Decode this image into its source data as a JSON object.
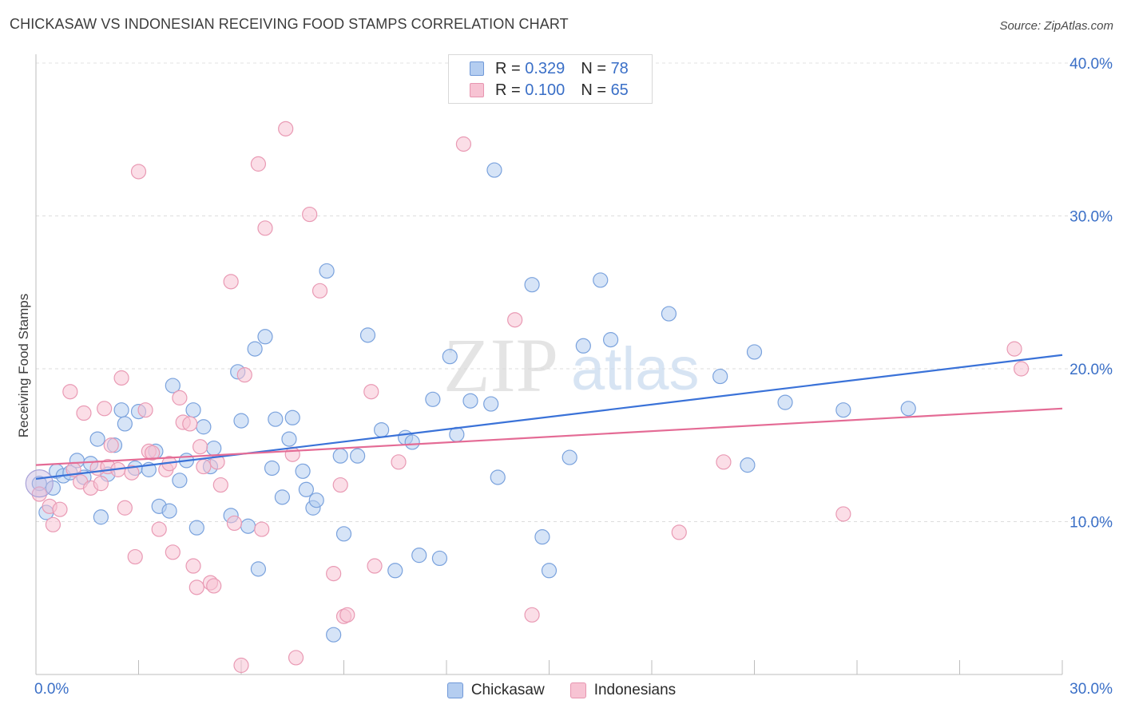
{
  "title": "CHICKASAW VS INDONESIAN RECEIVING FOOD STAMPS CORRELATION CHART",
  "source": "Source: ZipAtlas.com",
  "watermark": {
    "zip": "ZIP",
    "atlas": "atlas"
  },
  "legend": {
    "r_label": "R =",
    "n_label": "N =",
    "rows": [
      {
        "r": "0.329",
        "n": "78",
        "fill": "#b4cdf0",
        "stroke": "#6f98d8"
      },
      {
        "r": "0.100",
        "n": "65",
        "fill": "#f7c3d3",
        "stroke": "#e795b0"
      }
    ]
  },
  "chart_data": {
    "type": "scatter",
    "title": "CHICKASAW VS INDONESIAN RECEIVING FOOD STAMPS CORRELATION CHART",
    "xlabel": "",
    "ylabel": "Receiving Food Stamps",
    "xlim": [
      0,
      30
    ],
    "ylim": [
      0,
      40
    ],
    "x_tick_labels": [
      "0.0%",
      "30.0%"
    ],
    "y_tick_labels": [
      "10.0%",
      "20.0%",
      "30.0%",
      "40.0%"
    ],
    "y_ticks": [
      10,
      20,
      30,
      40
    ],
    "grid": true,
    "legend_position": "top-center",
    "series": [
      {
        "name": "Chickasaw",
        "color": "#3a72d8",
        "fill": "#b4cdf0",
        "stroke": "#7aa2dd",
        "trend": {
          "x": [
            0,
            30
          ],
          "y": [
            12.8,
            20.9
          ]
        },
        "points": [
          [
            0.1,
            12.5
          ],
          [
            0.3,
            10.6
          ],
          [
            0.5,
            12.2
          ],
          [
            0.6,
            13.3
          ],
          [
            0.8,
            13.0
          ],
          [
            1.0,
            13.2
          ],
          [
            1.2,
            14.0
          ],
          [
            1.4,
            12.9
          ],
          [
            1.6,
            13.8
          ],
          [
            1.8,
            15.4
          ],
          [
            1.9,
            10.3
          ],
          [
            2.1,
            13.1
          ],
          [
            2.3,
            15.0
          ],
          [
            2.5,
            17.3
          ],
          [
            2.6,
            16.4
          ],
          [
            2.9,
            13.5
          ],
          [
            3.0,
            17.2
          ],
          [
            3.3,
            13.4
          ],
          [
            3.5,
            14.6
          ],
          [
            3.6,
            11.0
          ],
          [
            3.9,
            10.7
          ],
          [
            4.0,
            18.9
          ],
          [
            4.2,
            12.7
          ],
          [
            4.4,
            14.0
          ],
          [
            4.6,
            17.3
          ],
          [
            4.7,
            9.6
          ],
          [
            4.9,
            16.2
          ],
          [
            5.1,
            13.6
          ],
          [
            5.2,
            14.8
          ],
          [
            5.7,
            10.4
          ],
          [
            5.9,
            19.8
          ],
          [
            6.0,
            16.6
          ],
          [
            6.2,
            9.7
          ],
          [
            6.4,
            21.3
          ],
          [
            6.5,
            6.9
          ],
          [
            6.7,
            22.1
          ],
          [
            6.9,
            13.5
          ],
          [
            7.0,
            16.7
          ],
          [
            7.2,
            11.6
          ],
          [
            7.4,
            15.4
          ],
          [
            7.5,
            16.8
          ],
          [
            7.8,
            13.3
          ],
          [
            7.9,
            12.1
          ],
          [
            8.1,
            10.9
          ],
          [
            8.2,
            11.4
          ],
          [
            8.5,
            26.4
          ],
          [
            8.7,
            2.6
          ],
          [
            8.9,
            14.3
          ],
          [
            9.0,
            9.2
          ],
          [
            9.4,
            14.3
          ],
          [
            9.7,
            22.2
          ],
          [
            10.1,
            16.0
          ],
          [
            10.5,
            6.8
          ],
          [
            10.8,
            15.5
          ],
          [
            11.0,
            15.2
          ],
          [
            11.2,
            7.8
          ],
          [
            11.6,
            18.0
          ],
          [
            11.8,
            7.6
          ],
          [
            12.1,
            20.8
          ],
          [
            12.3,
            15.7
          ],
          [
            12.7,
            17.9
          ],
          [
            13.3,
            17.7
          ],
          [
            13.4,
            33.0
          ],
          [
            13.5,
            12.9
          ],
          [
            14.5,
            25.5
          ],
          [
            14.8,
            9.0
          ],
          [
            15.0,
            6.8
          ],
          [
            15.6,
            14.2
          ],
          [
            16.0,
            21.5
          ],
          [
            16.5,
            25.8
          ],
          [
            16.8,
            21.9
          ],
          [
            18.5,
            23.6
          ],
          [
            20.0,
            19.5
          ],
          [
            20.8,
            13.7
          ],
          [
            21.0,
            21.1
          ],
          [
            21.9,
            17.8
          ],
          [
            23.6,
            17.3
          ],
          [
            25.5,
            17.4
          ]
        ]
      },
      {
        "name": "Indonesians",
        "color": "#e46b95",
        "fill": "#f7c3d3",
        "stroke": "#e99ab4",
        "trend": {
          "x": [
            0,
            30
          ],
          "y": [
            13.7,
            17.4
          ]
        },
        "points": [
          [
            0.1,
            11.8
          ],
          [
            0.4,
            11.0
          ],
          [
            0.5,
            9.8
          ],
          [
            0.7,
            10.8
          ],
          [
            1.0,
            18.5
          ],
          [
            1.1,
            13.4
          ],
          [
            1.3,
            12.6
          ],
          [
            1.4,
            17.1
          ],
          [
            1.6,
            12.2
          ],
          [
            1.8,
            13.5
          ],
          [
            1.9,
            12.5
          ],
          [
            2.0,
            17.4
          ],
          [
            2.1,
            13.6
          ],
          [
            2.2,
            15.0
          ],
          [
            2.4,
            13.4
          ],
          [
            2.5,
            19.4
          ],
          [
            2.6,
            10.9
          ],
          [
            2.8,
            13.2
          ],
          [
            2.9,
            7.7
          ],
          [
            3.0,
            32.9
          ],
          [
            3.2,
            17.3
          ],
          [
            3.3,
            14.6
          ],
          [
            3.4,
            14.5
          ],
          [
            3.6,
            9.5
          ],
          [
            3.8,
            13.4
          ],
          [
            3.9,
            13.8
          ],
          [
            4.0,
            8.0
          ],
          [
            4.2,
            18.1
          ],
          [
            4.3,
            16.5
          ],
          [
            4.5,
            16.4
          ],
          [
            4.6,
            7.1
          ],
          [
            4.7,
            5.7
          ],
          [
            4.8,
            14.9
          ],
          [
            4.9,
            13.6
          ],
          [
            5.1,
            6.0
          ],
          [
            5.2,
            5.8
          ],
          [
            5.3,
            13.9
          ],
          [
            5.4,
            12.4
          ],
          [
            5.7,
            25.7
          ],
          [
            5.8,
            9.9
          ],
          [
            6.0,
            0.6
          ],
          [
            6.1,
            19.6
          ],
          [
            6.5,
            33.4
          ],
          [
            6.6,
            9.5
          ],
          [
            6.7,
            29.2
          ],
          [
            7.3,
            35.7
          ],
          [
            7.5,
            14.4
          ],
          [
            7.6,
            1.1
          ],
          [
            8.0,
            30.1
          ],
          [
            8.3,
            25.1
          ],
          [
            8.7,
            6.6
          ],
          [
            8.9,
            12.4
          ],
          [
            9.0,
            3.8
          ],
          [
            9.1,
            3.9
          ],
          [
            9.8,
            18.5
          ],
          [
            9.9,
            7.1
          ],
          [
            10.6,
            13.9
          ],
          [
            12.5,
            34.7
          ],
          [
            14.0,
            23.2
          ],
          [
            14.5,
            3.9
          ],
          [
            18.8,
            9.3
          ],
          [
            20.1,
            13.9
          ],
          [
            23.6,
            10.5
          ],
          [
            28.6,
            21.3
          ],
          [
            28.8,
            20.0
          ]
        ]
      }
    ]
  }
}
